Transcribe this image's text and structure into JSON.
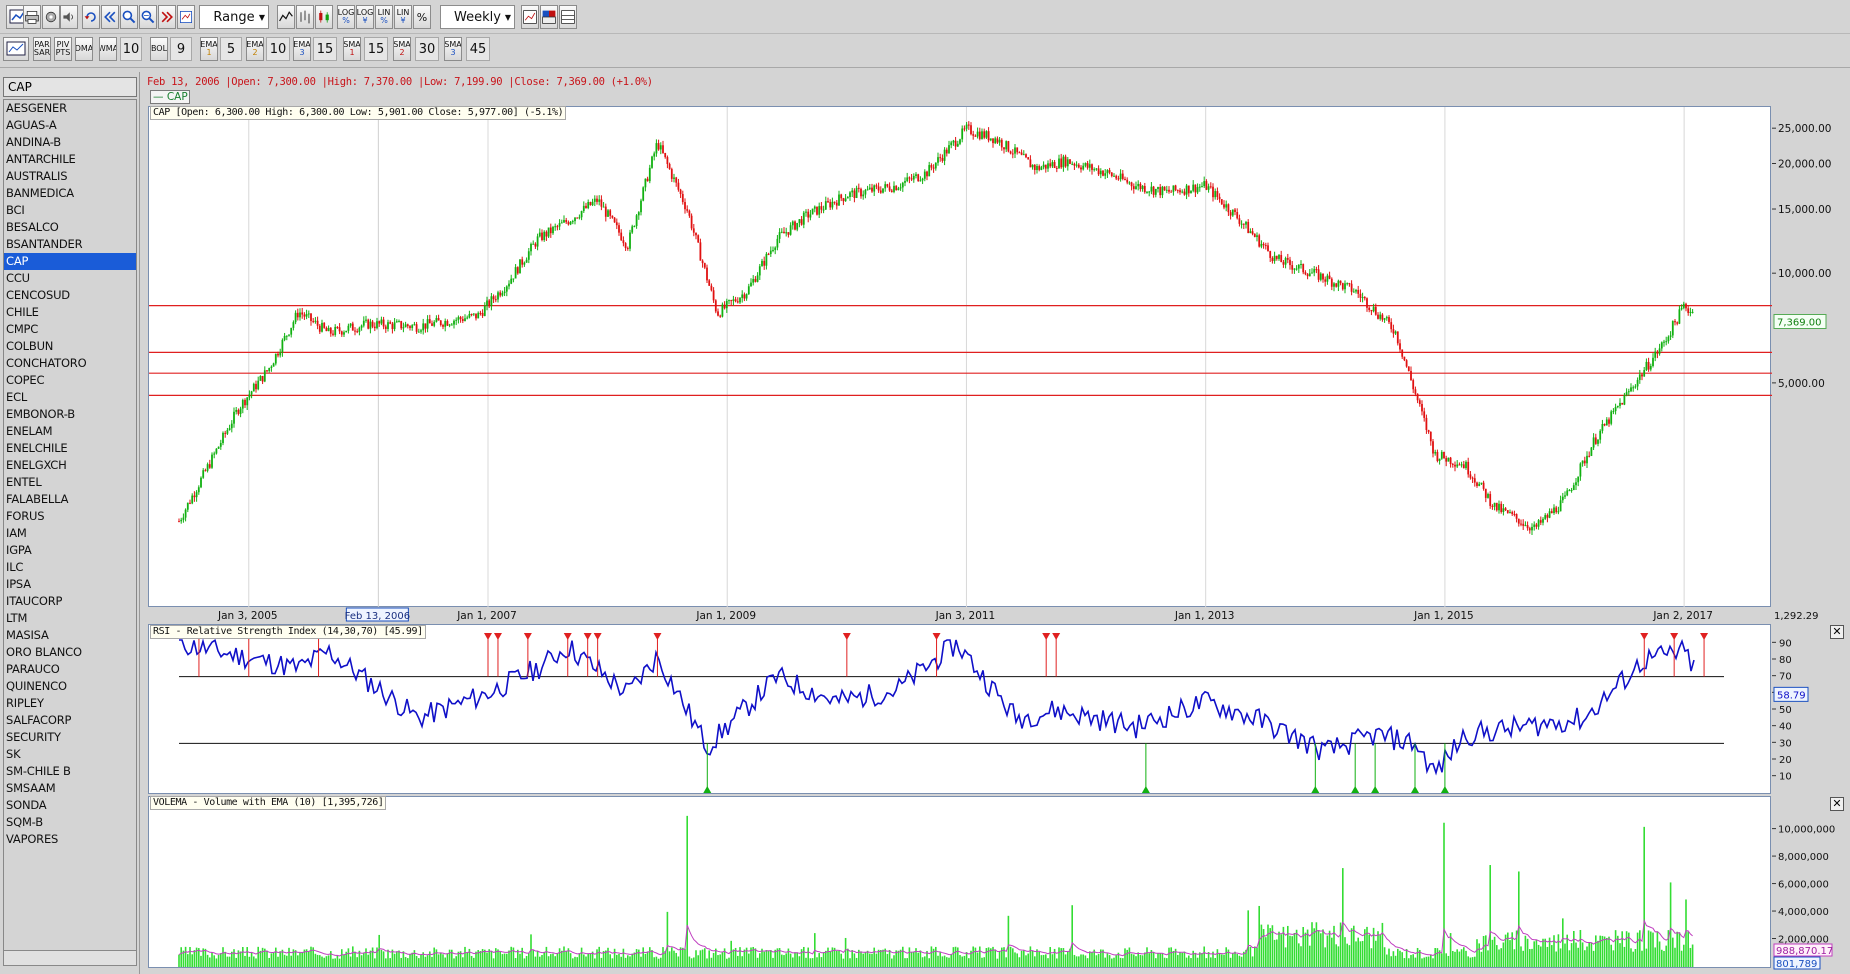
{
  "toolbar1": {
    "range_label": "Range",
    "period_label": "Weekly",
    "log1": [
      "LOG",
      "%"
    ],
    "log2": [
      "LOG",
      "¥"
    ],
    "lin1": [
      "LIN",
      "%"
    ],
    "lin2": [
      "LIN",
      "¥"
    ],
    "pct": "%"
  },
  "toolbar2": {
    "par_sar": [
      "PAR",
      "SAR"
    ],
    "piv_pts": [
      "PIV",
      "PTS"
    ],
    "dma": "DMA",
    "wma": "WMA",
    "wma_val": "10",
    "bol": "BOL",
    "bol_val": "9",
    "ema1": [
      "EMA",
      "1"
    ],
    "ema1_val": "5",
    "ema2": [
      "EMA",
      "2"
    ],
    "ema2_val": "10",
    "ema3": [
      "EMA",
      "3"
    ],
    "ema3_val": "15",
    "sma1": [
      "SMA",
      "1"
    ],
    "sma1_val": "15",
    "sma2": [
      "SMA",
      "2"
    ],
    "sma2_val": "30",
    "sma3": [
      "SMA",
      "3"
    ],
    "sma3_val": "45"
  },
  "sidebar": {
    "current": "CAP",
    "selected": "CAP",
    "items": [
      "AESGENER",
      "AGUAS-A",
      "ANDINA-B",
      "ANTARCHILE",
      "AUSTRALIS",
      "BANMEDICA",
      "BCI",
      "BESALCO",
      "BSANTANDER",
      "CAP",
      "CCU",
      "CENCOSUD",
      "CHILE",
      "CMPC",
      "COLBUN",
      "CONCHATORO",
      "COPEC",
      "ECL",
      "EMBONOR-B",
      "ENELAM",
      "ENELCHILE",
      "ENELGXCH",
      "ENTEL",
      "FALABELLA",
      "FORUS",
      "IAM",
      "IGPA",
      "ILC",
      "IPSA",
      "ITAUCORP",
      "LTM",
      "MASISA",
      "ORO BLANCO",
      "PARAUCO",
      "QUINENCO",
      "RIPLEY",
      "SALFACORP",
      "SECURITY",
      "SK",
      "SM-CHILE B",
      "SMSAAM",
      "SONDA",
      "SQM-B",
      "VAPORES"
    ]
  },
  "price_panel": {
    "info_line": "Feb 13, 2006 |Open: 7,300.00 |High: 7,370.00 |Low: 7,199.90 |Close: 7,369.00 (+1.0%)",
    "symbol_tag": "— CAP",
    "ohlc_label": "CAP [Open: 6,300.00  High: 6,300.00  Low: 5,901.00  Close: 5,977.00] (-5.1%)",
    "y_ticks": [
      "25,000.00",
      "20,000.00",
      "15,000.00",
      "10,000.00",
      "5,000.00"
    ],
    "last_price": "7,369.00",
    "bottom_value": "1,292.29",
    "x_ticks": [
      "Jan 3, 2005",
      "Jan 1, 2007",
      "Jan 1, 2009",
      "Jan 3, 2011",
      "Jan 1, 2013",
      "Jan 1, 2015",
      "Jan 2, 2017"
    ],
    "cursor_date": "Feb 13, 2006",
    "up_color": "#11b011",
    "down_color": "#e01010"
  },
  "rsi_panel": {
    "label": "RSI - Relative Strength Index (14,30,70) [45.99]",
    "y_ticks": [
      "90",
      "80",
      "70",
      "60",
      "50",
      "40",
      "30",
      "20",
      "10"
    ],
    "value": "58.79",
    "line_color": "#1010c8"
  },
  "vol_panel": {
    "label": "VOLEMA - Volume with EMA (10) [1,395,726]",
    "y_ticks": [
      "10,000,000",
      "8,000,000",
      "6,000,000",
      "4,000,000",
      "2,000,000"
    ],
    "ema_value": "988,870.17",
    "vol_value": "801,789",
    "bar_color": "#33dd33",
    "ema_color": "#c040c0"
  },
  "chart_data": [
    {
      "type": "candlestick",
      "title": "CAP",
      "x": [
        "2004-06",
        "2004-09",
        "2004-12",
        "2005-03",
        "2005-06",
        "2005-09",
        "2006-01",
        "2006-06",
        "2006-12",
        "2007-03",
        "2007-06",
        "2007-09",
        "2007-12",
        "2008-03",
        "2008-06",
        "2008-09",
        "2008-12",
        "2009-03",
        "2009-06",
        "2009-09",
        "2010-01",
        "2010-06",
        "2010-09",
        "2011-01",
        "2011-04",
        "2011-08",
        "2011-11",
        "2012-03",
        "2012-06",
        "2012-09",
        "2013-01",
        "2013-04",
        "2013-08",
        "2013-12",
        "2014-04",
        "2014-08",
        "2014-12",
        "2015-03",
        "2015-06",
        "2015-10",
        "2016-01",
        "2016-04",
        "2016-08",
        "2016-11",
        "2017-01",
        "2017-03",
        "2017-05"
      ],
      "close": [
        2100,
        3000,
        4300,
        5500,
        7900,
        6900,
        7300,
        7200,
        7700,
        9500,
        12500,
        14000,
        16000,
        12000,
        23000,
        15000,
        7800,
        9000,
        12500,
        14500,
        16500,
        17500,
        19000,
        25000,
        23500,
        19500,
        20500,
        19000,
        17500,
        16800,
        17500,
        14500,
        11000,
        10000,
        9000,
        7000,
        3200,
        3000,
        2300,
        2000,
        2400,
        3500,
        5000,
        6500,
        8200,
        7400,
        6000
      ],
      "ylim": [
        1292.29,
        27000
      ],
      "scale": "log"
    },
    {
      "type": "line",
      "title": "RSI - Relative Strength Index (14,30,70)",
      "levels": [
        30,
        70
      ],
      "ylim": [
        5,
        95
      ],
      "x": [
        "2004-06",
        "2005-06",
        "2005-09",
        "2006-06",
        "2007-01",
        "2007-06",
        "2007-09",
        "2008-03",
        "2008-06",
        "2008-11",
        "2009-06",
        "2009-12",
        "2010-06",
        "2010-12",
        "2011-06",
        "2011-10",
        "2012-06",
        "2013-01",
        "2013-06",
        "2014-01",
        "2014-06",
        "2014-10",
        "2014-12",
        "2015-03",
        "2015-09",
        "2016-03",
        "2016-09",
        "2017-01",
        "2017-05"
      ],
      "values": [
        90,
        75,
        85,
        45,
        60,
        75,
        88,
        60,
        82,
        28,
        70,
        55,
        62,
        90,
        45,
        50,
        40,
        55,
        45,
        25,
        35,
        30,
        12,
        35,
        40,
        45,
        80,
        85,
        46
      ],
      "last": 45.99
    },
    {
      "type": "bar",
      "title": "VOLEMA - Volume with EMA (10)",
      "ylim": [
        0,
        11500000
      ],
      "peaks": [
        {
          "x": "2008-09",
          "value": 11000000
        },
        {
          "x": "2015-01",
          "value": 10500000
        },
        {
          "x": "2016-09",
          "value": 10200000
        }
      ],
      "last_ema": 1395726
    }
  ]
}
